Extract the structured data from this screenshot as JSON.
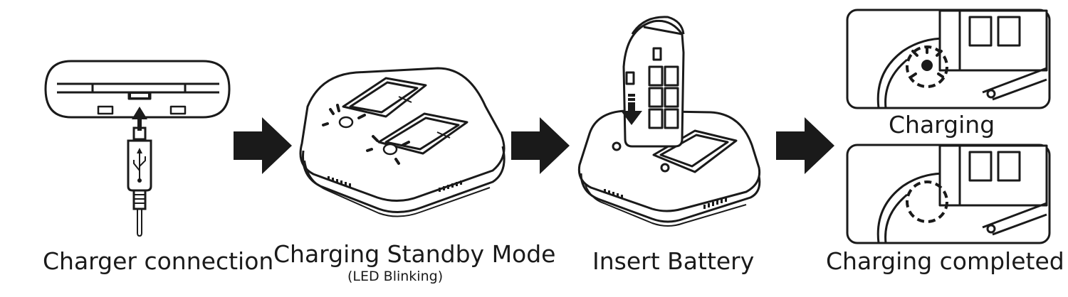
{
  "steps": [
    {
      "caption": "Charger connection"
    },
    {
      "caption": "Charging Standby Mode",
      "subcaption": "(LED Blinking)"
    },
    {
      "caption": "Insert Battery"
    }
  ],
  "states": [
    {
      "caption": "Charging"
    },
    {
      "caption": "Charging completed"
    }
  ],
  "icons": {
    "usb_symbol": "usb-symbol-icon",
    "insert_arrow": "down-arrow-icon",
    "step_arrow": "right-arrow-icon",
    "led": "led-indicator-icon"
  },
  "colors": {
    "line": "#1a1a1a",
    "background": "#ffffff"
  }
}
